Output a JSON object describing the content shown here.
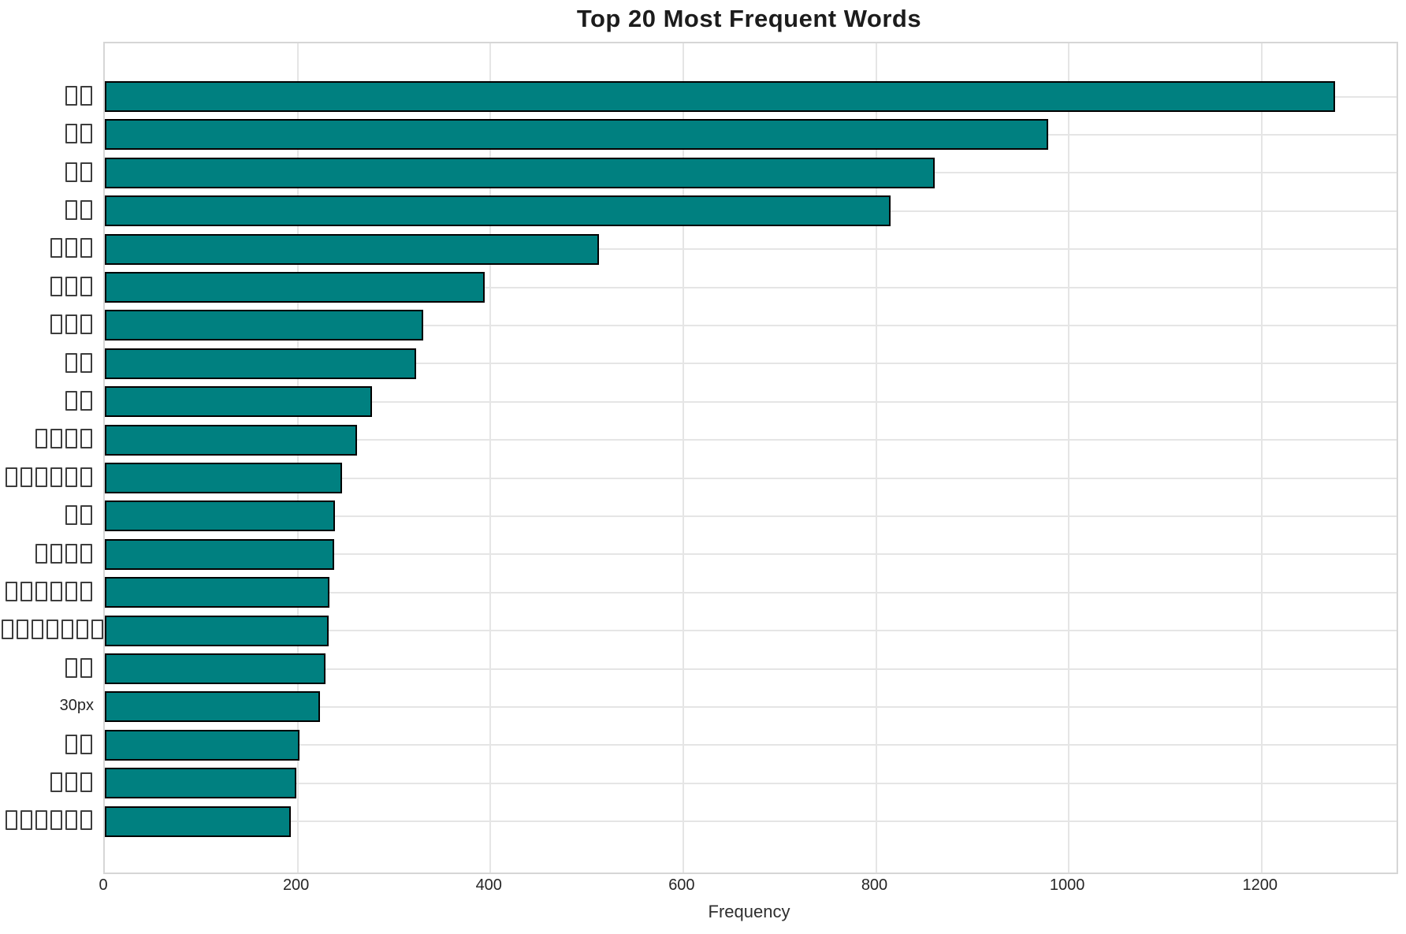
{
  "chart_data": {
    "type": "bar",
    "orientation": "horizontal",
    "title": "Top 20 Most Frequent Words",
    "xlabel": "Frequency",
    "ylabel": "",
    "categories": [
      "▯▯",
      "▯▯",
      "▯▯",
      "▯▯",
      "▯▯▯",
      "▯▯▯",
      "▯▯▯",
      "▯▯",
      "▯▯",
      "▯▯▯▯",
      "▯▯▯▯▯▯",
      "▯▯",
      "▯▯▯▯",
      "▯▯▯▯▯▯",
      "▯▯▯▯▯▯▯▯",
      "▯▯",
      "30px",
      "▯▯",
      "▯▯▯",
      "▯▯▯▯▯▯"
    ],
    "values": [
      1276,
      979,
      861,
      815,
      513,
      394,
      330,
      323,
      277,
      262,
      246,
      239,
      238,
      233,
      232,
      229,
      223,
      202,
      199,
      193
    ],
    "xticks": [
      0,
      200,
      400,
      600,
      800,
      1000,
      1200
    ],
    "xlim": [
      0,
      1340
    ],
    "grid": true,
    "legend_position": "none",
    "bar_color": "#008080",
    "bar_edge_color": "#000000",
    "grid_color": "#e5e5e5",
    "text_color": "#262626"
  }
}
